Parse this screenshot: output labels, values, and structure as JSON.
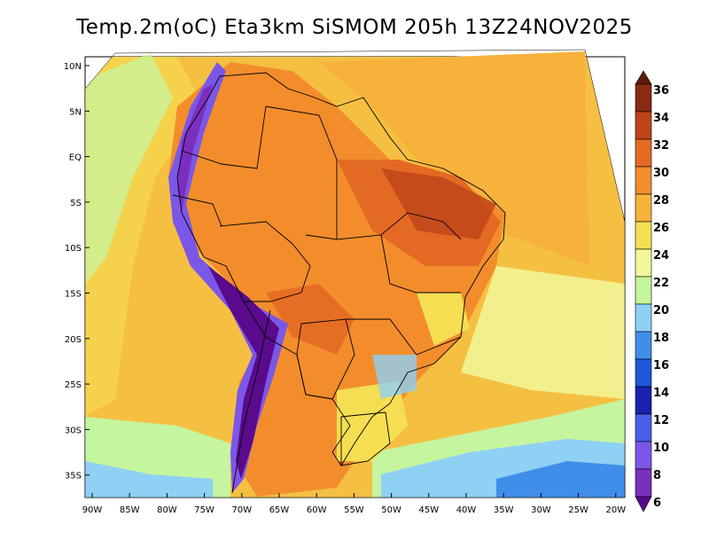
{
  "title": "Temp.2m(oC) Eta3km SiSMOM 205h 13Z24NOV2025",
  "map": {
    "lat_labels": [
      "10N",
      "5N",
      "EQ",
      "5S",
      "10S",
      "15S",
      "20S",
      "25S",
      "30S",
      "35S"
    ],
    "lon_labels": [
      "90W",
      "85W",
      "80W",
      "75W",
      "70W",
      "65W",
      "60W",
      "55W",
      "50W",
      "45W",
      "40W",
      "35W",
      "30W",
      "25W",
      "20W"
    ],
    "region": "South America / Brazil",
    "variable": "2 m temperature (oC)"
  },
  "colorbar": {
    "ticks": [
      "6",
      "8",
      "10",
      "12",
      "14",
      "16",
      "18",
      "20",
      "22",
      "24",
      "26",
      "28",
      "30",
      "32",
      "34",
      "36"
    ],
    "colors": [
      "#5a0a8c",
      "#7b2fbf",
      "#7b57e8",
      "#4a5ee8",
      "#1a20b0",
      "#1e58d8",
      "#3f8fea",
      "#8fd0f5",
      "#c5f59e",
      "#f2f79a",
      "#f5de52",
      "#f7b23b",
      "#f38d2c",
      "#e46a24",
      "#bd4418",
      "#8b2a12",
      "#5e1a0a"
    ]
  }
}
